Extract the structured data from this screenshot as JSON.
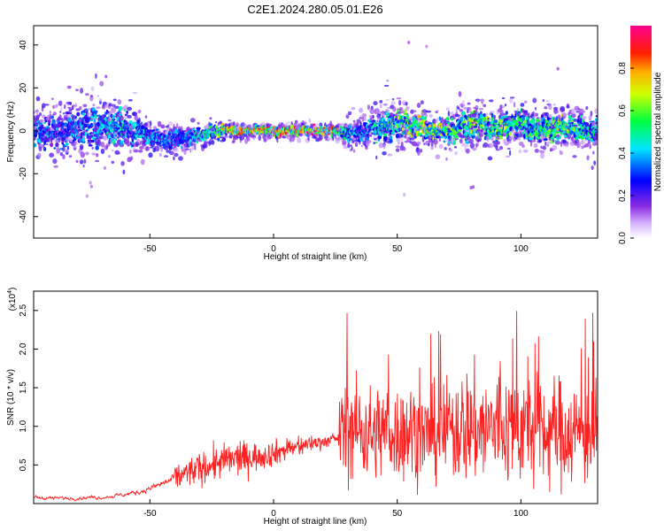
{
  "title": "C2E1.2024.280.05.01.E26",
  "chart_data": [
    {
      "type": "heatmap",
      "xlabel": "Height of straight line (km)",
      "ylabel": "Frequency (Hz)",
      "xlim": [
        -97,
        131
      ],
      "ylim": [
        -50,
        49
      ],
      "x_ticks": [
        -50,
        0,
        50,
        100
      ],
      "y_ticks": [
        -40,
        -20,
        0,
        20,
        40
      ],
      "x_tick_labels": [
        "-50",
        "0",
        "50",
        "100"
      ],
      "y_tick_labels": [
        "-40",
        "-20",
        "0",
        "20",
        "40"
      ],
      "colorbar": {
        "label": "Normalized spectral amplitude",
        "range": [
          0,
          1
        ],
        "ticks": [
          0.0,
          0.2,
          0.4,
          0.6,
          0.8
        ],
        "tick_labels": [
          "0.0",
          "0.2",
          "0.4",
          "0.6",
          "0.8"
        ],
        "colormap": "rainbow (white → violet → blue → cyan → green → yellow → red → magenta)"
      },
      "ridge": {
        "x": [
          -97,
          -85,
          -75,
          -65,
          -60,
          -55,
          -50,
          -45,
          -40,
          -35,
          -30,
          -25,
          -20,
          -15,
          -10,
          -5,
          0,
          5,
          10,
          15,
          20,
          25,
          30,
          35,
          40,
          45,
          50,
          55,
          60,
          65,
          70,
          75,
          80,
          85,
          90,
          95,
          100,
          105,
          110,
          115,
          120,
          125,
          131
        ],
        "freq_center_hz": [
          0,
          -1,
          2,
          3,
          2,
          0,
          -2,
          -3,
          -4,
          -3,
          -2,
          -1,
          0,
          0,
          0,
          0,
          0,
          0,
          0,
          0,
          0,
          0,
          -1,
          0,
          1,
          2,
          4,
          2,
          1,
          0,
          0,
          1,
          3,
          2,
          1,
          2,
          3,
          1,
          1,
          2,
          1,
          1,
          -1
        ],
        "band_halfwidth_hz": [
          7,
          9,
          10,
          10,
          9,
          6,
          4,
          4,
          5,
          4,
          3,
          3,
          2,
          2,
          2,
          2,
          2,
          2,
          2,
          2,
          2,
          2,
          4,
          5,
          6,
          7,
          7,
          6,
          6,
          5,
          5,
          6,
          7,
          7,
          6,
          7,
          7,
          6,
          6,
          6,
          6,
          6,
          6
        ],
        "peak_amplitude": [
          0.45,
          0.4,
          0.45,
          0.5,
          0.55,
          0.5,
          0.45,
          0.45,
          0.4,
          0.45,
          0.55,
          0.6,
          0.8,
          0.9,
          0.95,
          0.95,
          1.0,
          1.0,
          0.95,
          1.0,
          1.0,
          0.9,
          0.5,
          0.45,
          0.5,
          0.6,
          0.7,
          0.75,
          0.8,
          0.75,
          0.7,
          0.65,
          0.75,
          0.7,
          0.75,
          0.7,
          0.65,
          0.6,
          0.65,
          0.75,
          0.7,
          0.6,
          0.5
        ]
      }
    },
    {
      "type": "line",
      "xlabel": "Height of straight line (km)",
      "ylabel": "SNR (10 * v/v)",
      "y_multiplier_label": "(x10",
      "y_multiplier_exp": "4",
      "y_multiplier_close": ")",
      "xlim": [
        -97,
        131
      ],
      "ylim": [
        0,
        2.75
      ],
      "x_ticks": [
        -50,
        0,
        50,
        100
      ],
      "y_ticks": [
        0.5,
        1.0,
        1.5,
        2.0,
        2.5
      ],
      "x_tick_labels": [
        "-50",
        "0",
        "50",
        "100"
      ],
      "y_tick_labels": [
        "0.5",
        "1.0",
        "1.5",
        "2.0",
        "2.5"
      ],
      "line_color": "#ff2020",
      "series": [
        {
          "x": [
            -97,
            -90,
            -85,
            -80,
            -75,
            -70,
            -65,
            -60,
            -55,
            -50,
            -45,
            -40,
            -35,
            -30,
            -25,
            -20,
            -15,
            -10,
            -5,
            0,
            5,
            10,
            15,
            20,
            25,
            26,
            27,
            30,
            35,
            40,
            45,
            50,
            55,
            60,
            65,
            70,
            75,
            80,
            85,
            90,
            95,
            100,
            105,
            110,
            115,
            120,
            125,
            131
          ],
          "values": [
            0.08,
            0.07,
            0.07,
            0.07,
            0.08,
            0.08,
            0.1,
            0.12,
            0.15,
            0.2,
            0.26,
            0.33,
            0.4,
            0.45,
            0.5,
            0.55,
            0.58,
            0.6,
            0.62,
            0.65,
            0.7,
            0.73,
            0.78,
            0.8,
            0.83,
            0.85,
            0.95,
            1.0,
            0.95,
            0.9,
            0.95,
            0.9,
            0.95,
            0.88,
            0.9,
            0.95,
            1.0,
            1.0,
            0.95,
            1.0,
            0.95,
            1.0,
            0.95,
            0.9,
            0.95,
            0.9,
            0.95,
            0.9
          ],
          "spread": [
            0.05,
            0.05,
            0.05,
            0.05,
            0.05,
            0.05,
            0.05,
            0.06,
            0.07,
            0.09,
            0.12,
            0.15,
            0.17,
            0.18,
            0.2,
            0.2,
            0.2,
            0.18,
            0.16,
            0.15,
            0.14,
            0.12,
            0.1,
            0.08,
            0.06,
            0.05,
            0.5,
            0.6,
            0.6,
            0.55,
            0.55,
            0.55,
            0.6,
            0.5,
            0.55,
            0.6,
            0.65,
            0.7,
            0.65,
            0.7,
            0.65,
            0.7,
            0.65,
            0.6,
            0.65,
            0.6,
            0.65,
            0.6
          ]
        }
      ]
    }
  ]
}
